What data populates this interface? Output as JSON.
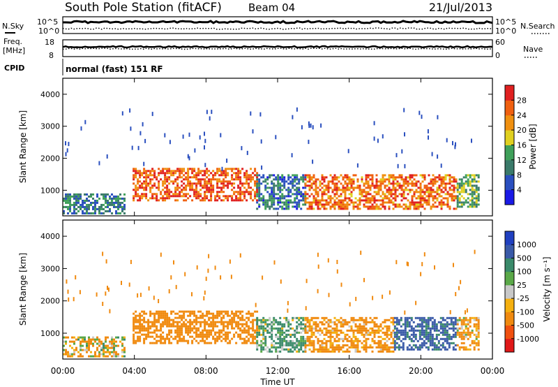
{
  "header": {
    "title": "South Pole Station (fitACF)",
    "beam": "Beam 04",
    "date": "21/Jul/2013"
  },
  "status_panels": {
    "nsky_label": "N.Sky",
    "nsearch_label": "N.Search",
    "freq_label_line1": "Freq.",
    "freq_label_line2": "[MHz]",
    "nave_label": "Nave",
    "cpid_label": "CPID",
    "cpid_value": "normal (fast) 151 RF",
    "noise_left_ticks": [
      "10^5",
      "10^0"
    ],
    "noise_right_ticks": [
      "10^5",
      "10^0"
    ],
    "freq_left_ticks": [
      "18",
      "8"
    ],
    "nave_right_ticks": [
      "60",
      "0"
    ]
  },
  "colors": {
    "power_scale": [
      "#1a1ae6",
      "#2a4fbf",
      "#3a7a6a",
      "#3fa05a",
      "#e0d020",
      "#f09010",
      "#f06010",
      "#e02020"
    ],
    "velocity_scale": [
      "#e01818",
      "#f05010",
      "#f08a10",
      "#f5b010",
      "#c8c8c8",
      "#5aa848",
      "#3a8a6a",
      "#3a5aa8",
      "#2040c0"
    ]
  },
  "chart_data": [
    {
      "type": "heatmap",
      "title": "",
      "xlabel": "",
      "ylabel": "Slant Range [km]",
      "x_ticks": [
        "00:00",
        "04:00",
        "08:00",
        "12:00",
        "16:00",
        "20:00",
        "00:00"
      ],
      "y_ticks": [
        1000,
        2000,
        3000,
        4000
      ],
      "ylim": [
        200,
        4500
      ],
      "colorbar": {
        "label": "Power [dB]",
        "ticks": [
          4,
          8,
          12,
          16,
          20,
          24,
          28
        ],
        "range": [
          0,
          32
        ]
      },
      "echo_bands": [
        {
          "t_start_h": 0.0,
          "t_end_h": 3.5,
          "range_low_km": 300,
          "range_high_km": 900,
          "power_db": 10
        },
        {
          "t_start_h": 3.9,
          "t_end_h": 10.8,
          "range_low_km": 700,
          "range_high_km": 1700,
          "power_db": 26
        },
        {
          "t_start_h": 10.8,
          "t_end_h": 13.5,
          "range_low_km": 400,
          "range_high_km": 1500,
          "power_db": 9
        },
        {
          "t_start_h": 13.5,
          "t_end_h": 22.0,
          "range_low_km": 400,
          "range_high_km": 1500,
          "power_db": 25
        },
        {
          "t_start_h": 22.0,
          "t_end_h": 23.2,
          "range_low_km": 500,
          "range_high_km": 1500,
          "power_db": 14
        }
      ]
    },
    {
      "type": "heatmap",
      "title": "",
      "xlabel": "Time UT",
      "ylabel": "Slant Range [km]",
      "x_ticks": [
        "00:00",
        "04:00",
        "08:00",
        "12:00",
        "16:00",
        "20:00",
        "00:00"
      ],
      "y_ticks": [
        1000,
        2000,
        3000,
        4000
      ],
      "ylim": [
        200,
        4500
      ],
      "colorbar": {
        "label": "Velocity [m s⁻¹]",
        "ticks": [
          "1000",
          "500",
          "100",
          "25",
          "-25",
          "-100",
          "-500",
          "-1000"
        ]
      },
      "echo_bands": [
        {
          "t_start_h": 0.0,
          "t_end_h": 3.5,
          "range_low_km": 300,
          "range_high_km": 900,
          "velocity_ms": -80
        },
        {
          "t_start_h": 3.9,
          "t_end_h": 10.8,
          "range_low_km": 700,
          "range_high_km": 1700,
          "velocity_ms": -300
        },
        {
          "t_start_h": 10.8,
          "t_end_h": 13.5,
          "range_low_km": 400,
          "range_high_km": 1500,
          "velocity_ms": 150
        },
        {
          "t_start_h": 13.5,
          "t_end_h": 18.5,
          "range_low_km": 400,
          "range_high_km": 1500,
          "velocity_ms": -200
        },
        {
          "t_start_h": 18.5,
          "t_end_h": 22.0,
          "range_low_km": 500,
          "range_high_km": 1500,
          "velocity_ms": 600
        },
        {
          "t_start_h": 22.0,
          "t_end_h": 23.2,
          "range_low_km": 500,
          "range_high_km": 1500,
          "velocity_ms": -150
        }
      ]
    }
  ]
}
